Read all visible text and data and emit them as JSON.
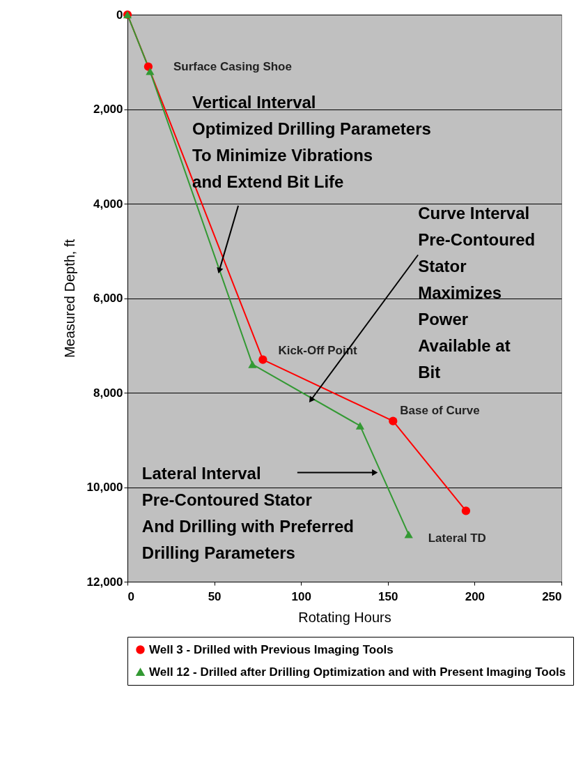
{
  "chart_data": {
    "type": "line",
    "xlabel": "Rotating Hours",
    "ylabel": "Measured Depth, ft",
    "xlim": [
      0,
      250
    ],
    "xticks": [
      0,
      50,
      100,
      150,
      200,
      250
    ],
    "ylim": [
      12000,
      0
    ],
    "yticks": [
      0,
      {
        "value": 2000,
        "label": "2,000"
      },
      {
        "value": 4000,
        "label": "4,000"
      },
      {
        "value": 6000,
        "label": "6,000"
      },
      {
        "value": 8000,
        "label": "8,000"
      },
      {
        "value": 10000,
        "label": "10,000"
      },
      {
        "value": 12000,
        "label": "12,000"
      }
    ],
    "grid": "y",
    "legend": "bottom",
    "line_style": "solid",
    "series": [
      {
        "name": "Well 3 - Drilled with Previous Imaging Tools",
        "color": "#ff0000",
        "marker": "circle",
        "x": [
          0,
          12,
          78,
          153,
          195
        ],
        "values": [
          0,
          1100,
          7300,
          8600,
          10500
        ]
      },
      {
        "name": "Well 12 - Drilled after Drilling Optimization and with Present Imaging Tools",
        "color": "#339933",
        "marker": "triangle",
        "x": [
          0,
          13,
          72,
          134,
          162
        ],
        "values": [
          0,
          1200,
          7400,
          8700,
          11000
        ]
      }
    ],
    "annotations": [
      {
        "text": "Surface Casing Shoe",
        "x": 12,
        "y": 1100
      },
      {
        "text": "Kick-Off Point",
        "x": 78,
        "y": 7300
      },
      {
        "text": "Base of Curve",
        "x": 153,
        "y": 8600
      },
      {
        "text": "Lateral TD",
        "x": 162,
        "y": 11000
      },
      {
        "text": "Vertical Interval\nOptimized Drilling Parameters\nTo Minimize Vibrations\n and Extend Bit Life",
        "x": 53,
        "y": 5400
      },
      {
        "text": "Curve Interval\nPre-Contoured\nStator\nMaximizes\nPower\nAvailable at\nBit",
        "x": 106,
        "y": 8140
      },
      {
        "text": "Lateral Interval\nPre-Contoured Stator\nAnd Drilling with Preferred\nDrilling Parameters",
        "x": 142,
        "y": 9690
      }
    ]
  }
}
